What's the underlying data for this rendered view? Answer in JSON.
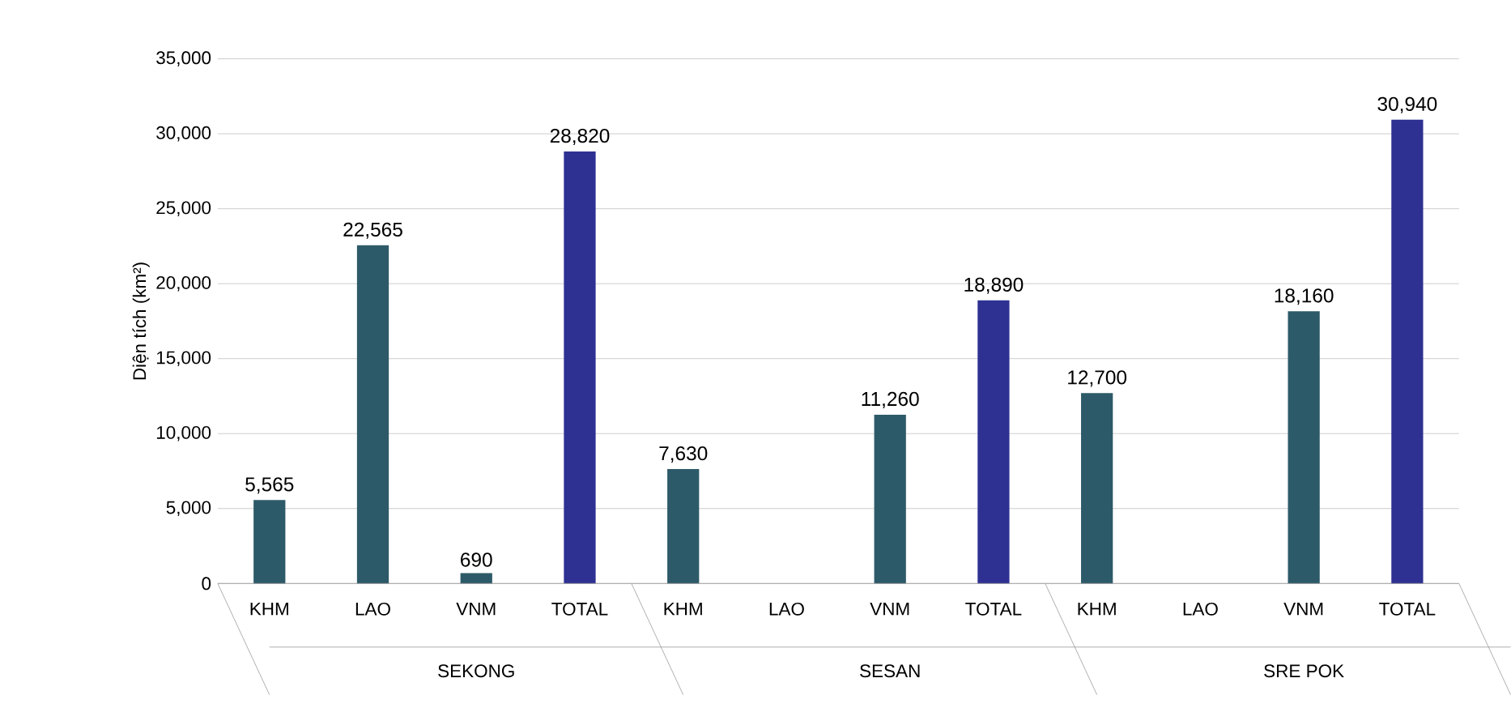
{
  "chart_data": {
    "type": "bar",
    "ylabel": "Diện tích (km²)",
    "categories": [
      "KHM",
      "LAO",
      "VNM",
      "TOTAL",
      "KHM",
      "LAO",
      "VNM",
      "TOTAL",
      "KHM",
      "LAO",
      "VNM",
      "TOTAL"
    ],
    "values": [
      5565,
      22565,
      690,
      28820,
      7630,
      null,
      11260,
      18890,
      12700,
      null,
      18160,
      30940
    ],
    "value_labels": [
      "5,565",
      "22,565",
      "690",
      "28,820",
      "7,630",
      null,
      "11,260",
      "18,890",
      "12,700",
      null,
      "18,160",
      "30,940"
    ],
    "colors": [
      "#2d5a68",
      "#2d5a68",
      "#2d5a68",
      "#2e3192",
      "#2d5a68",
      "#2d5a68",
      "#2d5a68",
      "#2e3192",
      "#2d5a68",
      "#2d5a68",
      "#2d5a68",
      "#2e3192"
    ],
    "annotations": [
      "SEKONG",
      "SESAN",
      "SRE POK"
    ],
    "ylim": [
      0,
      35000
    ],
    "yticks": [
      {
        "value": 0,
        "label": "0"
      },
      {
        "value": 5000,
        "label": "5,000"
      },
      {
        "value": 10000,
        "label": "10,000"
      },
      {
        "value": 15000,
        "label": "15,000"
      },
      {
        "value": 20000,
        "label": "20,000"
      },
      {
        "value": 25000,
        "label": "25,000"
      },
      {
        "value": 30000,
        "label": "30,000"
      },
      {
        "value": 35000,
        "label": "35,000"
      }
    ],
    "grid": "y"
  }
}
